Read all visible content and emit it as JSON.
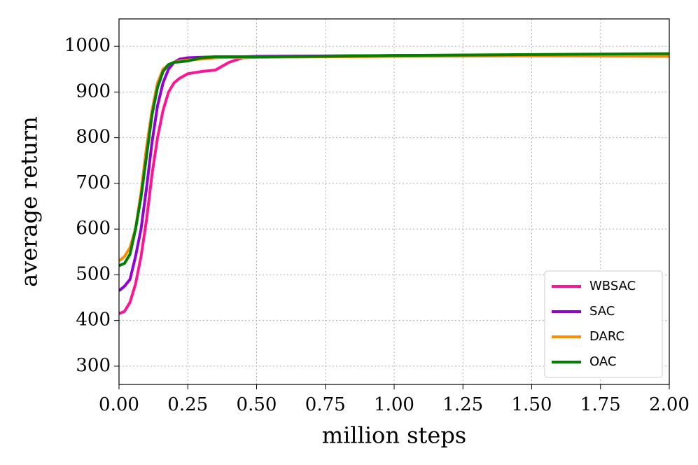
{
  "chart_data": {
    "type": "line",
    "x_label": "million steps",
    "y_label": "average return",
    "x": [
      0,
      0.02,
      0.04,
      0.06,
      0.08,
      0.1,
      0.12,
      0.14,
      0.16,
      0.18,
      0.2,
      0.22,
      0.25,
      0.3,
      0.35,
      0.4,
      0.45,
      0.5,
      0.75,
      1.0,
      1.5,
      2.0
    ],
    "series": [
      {
        "name": "WBSAC",
        "color": "#ff1493",
        "values": [
          415,
          420,
          440,
          480,
          540,
          620,
          720,
          800,
          860,
          900,
          920,
          930,
          940,
          945,
          948,
          965,
          975,
          976,
          978,
          980,
          981,
          982
        ]
      },
      {
        "name": "SAC",
        "color": "#9400d3",
        "values": [
          465,
          475,
          490,
          540,
          600,
          690,
          790,
          870,
          920,
          950,
          965,
          972,
          975,
          976,
          977,
          977,
          977,
          978,
          979,
          980,
          981,
          982
        ]
      },
      {
        "name": "DARC",
        "color": "#ff8c00",
        "values": [
          530,
          540,
          560,
          600,
          680,
          780,
          860,
          920,
          950,
          960,
          965,
          968,
          970,
          972,
          975,
          976,
          975,
          976,
          977,
          978,
          979,
          978
        ]
      },
      {
        "name": "OAC",
        "color": "#008000",
        "values": [
          520,
          525,
          545,
          600,
          670,
          760,
          850,
          910,
          945,
          960,
          965,
          966,
          968,
          975,
          977,
          977,
          977,
          977,
          978,
          980,
          982,
          984
        ]
      }
    ],
    "xlim": [
      0,
      2.0
    ],
    "ylim": [
      260,
      1060
    ],
    "xticks": [
      {
        "value": 0,
        "label": "0.00"
      },
      {
        "value": 0.25,
        "label": "0.25"
      },
      {
        "value": 0.5,
        "label": "0.50"
      },
      {
        "value": 0.75,
        "label": "0.75"
      },
      {
        "value": 1.0,
        "label": "1.00"
      },
      {
        "value": 1.25,
        "label": "1.25"
      },
      {
        "value": 1.5,
        "label": "1.50"
      },
      {
        "value": 1.75,
        "label": "1.75"
      },
      {
        "value": 2.0,
        "label": "2.00"
      }
    ],
    "yticks": [
      300,
      400,
      500,
      600,
      700,
      800,
      900,
      1000
    ],
    "grid": true,
    "legend": "lower right"
  }
}
